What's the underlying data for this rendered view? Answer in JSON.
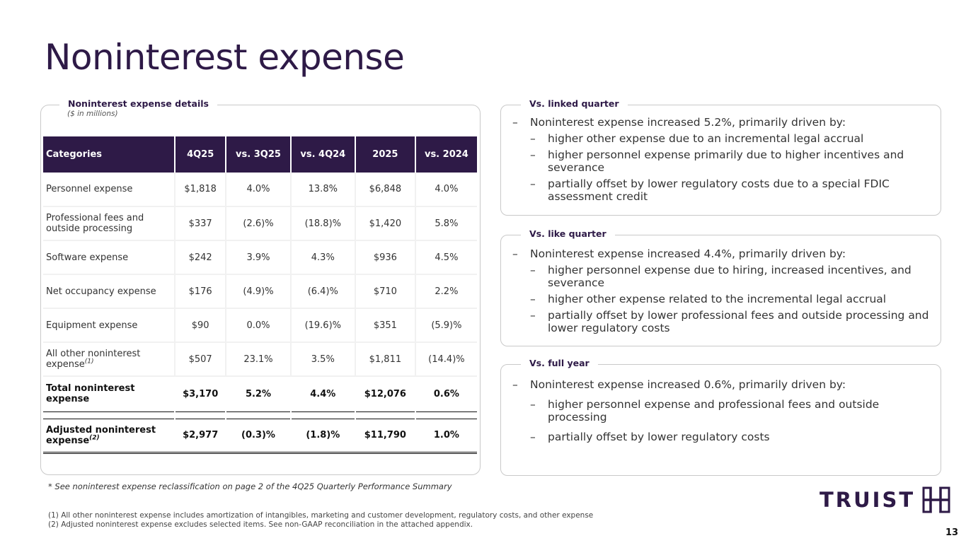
{
  "title": "Noninterest expense",
  "details": {
    "heading": "Noninterest expense details",
    "subheading": "($ in millions)",
    "columns": [
      "Categories",
      "4Q25",
      "vs. 3Q25",
      "vs. 4Q24",
      "2025",
      "vs. 2024"
    ],
    "rows": [
      {
        "category": "Personnel expense",
        "values": [
          "$1,818",
          "4.0%",
          "13.8%",
          "$6,848",
          "4.0%"
        ]
      },
      {
        "category": "Professional fees and outside processing",
        "values": [
          "$337",
          "(2.6)%",
          "(18.8)%",
          "$1,420",
          "5.8%"
        ]
      },
      {
        "category": "Software expense",
        "values": [
          "$242",
          "3.9%",
          "4.3%",
          "$936",
          "4.5%"
        ]
      },
      {
        "category": "Net occupancy expense",
        "values": [
          "$176",
          "(4.9)%",
          "(6.4)%",
          "$710",
          "2.2%"
        ]
      },
      {
        "category": "Equipment expense",
        "values": [
          "$90",
          "0.0%",
          "(19.6)%",
          "$351",
          "(5.9)%"
        ]
      },
      {
        "category": "All other noninterest expense",
        "footnote": "(1)",
        "values": [
          "$507",
          "23.1%",
          "3.5%",
          "$1,811",
          "(14.4)%"
        ]
      }
    ],
    "total": {
      "category": "Total noninterest expense",
      "values": [
        "$3,170",
        "5.2%",
        "4.4%",
        "$12,076",
        "0.6%"
      ]
    },
    "adjusted": {
      "category": "Adjusted noninterest expense",
      "footnote": "(2)",
      "values": [
        "$2,977",
        "(0.3)%",
        "(1.8)%",
        "$11,790",
        "1.0%"
      ]
    }
  },
  "reclass_note": "* See noninterest expense reclassification on page 2 of the 4Q25 Quarterly Performance Summary",
  "footnotes": [
    "(1)  All other noninterest expense includes amortization of intangibles, marketing and customer development, regulatory costs, and other expense",
    "(2)  Adjusted noninterest expense excludes selected items.  See non-GAAP reconciliation in the attached appendix."
  ],
  "linked_quarter": {
    "heading": "Vs. linked quarter",
    "main": "Noninterest expense increased 5.2%, primarily driven by:",
    "subs": [
      "higher other expense due to an incremental legal accrual",
      "higher personnel expense primarily due to higher incentives and severance",
      "partially offset by lower regulatory costs due to a special FDIC assessment credit"
    ]
  },
  "like_quarter": {
    "heading": "Vs. like quarter",
    "main": "Noninterest expense increased 4.4%, primarily driven by:",
    "subs": [
      "higher personnel expense due to hiring, increased incentives, and severance",
      "higher other expense related to the incremental legal accrual",
      "partially offset by lower professional fees and outside processing and lower regulatory costs"
    ]
  },
  "full_year": {
    "heading": "Vs. full year",
    "main": "Noninterest expense increased 0.6%, primarily driven by:",
    "subs": [
      "higher personnel expense and professional fees and outside processing",
      "partially offset by lower regulatory costs"
    ]
  },
  "dash": "–",
  "logo": {
    "text": "TRUIST",
    "icon": "truist-mark-icon",
    "color": "#2e1a47"
  },
  "page_number": "13"
}
